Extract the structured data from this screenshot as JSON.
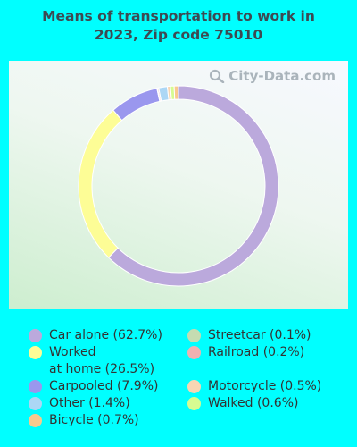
{
  "title_line1": "Means of transportation to work in",
  "title_line2": "2023, Zip code 75010",
  "watermark": "City-Data.com",
  "chart_data": {
    "type": "pie",
    "variant": "donut",
    "title": "Means of transportation to work in 2023, Zip code 75010",
    "slices": [
      {
        "label": "Car alone",
        "value": 62.7,
        "color": "#bba9dc"
      },
      {
        "label": "Worked at home",
        "value": 26.5,
        "color": "#fdfd96"
      },
      {
        "label": "Carpooled",
        "value": 7.9,
        "color": "#9a97ee"
      },
      {
        "label": "Streetcar",
        "value": 0.1,
        "color": "#c5dcb1"
      },
      {
        "label": "Railroad",
        "value": 0.2,
        "color": "#efb1b1"
      },
      {
        "label": "Other",
        "value": 1.4,
        "color": "#acd7f5"
      },
      {
        "label": "Motorcycle",
        "value": 0.5,
        "color": "#f8d6b3"
      },
      {
        "label": "Walked",
        "value": 0.6,
        "color": "#d6fb91"
      },
      {
        "label": "Bicycle",
        "value": 0.7,
        "color": "#f9c98d"
      }
    ],
    "slice_order_clockwise_from_top": [
      "Car alone",
      "Worked at home",
      "Carpooled",
      "Streetcar",
      "Railroad",
      "Other",
      "Motorcycle",
      "Walked",
      "Bicycle"
    ]
  },
  "legend": {
    "col1": [
      {
        "text": "Car alone (62.7%)",
        "color": "#bba9dc"
      },
      {
        "text": "Worked\nat home (26.5%)",
        "color": "#fdfd96"
      },
      {
        "text": "Carpooled (7.9%)",
        "color": "#9a97ee"
      },
      {
        "text": "Other (1.4%)",
        "color": "#acd7f5"
      },
      {
        "text": "Bicycle (0.7%)",
        "color": "#f9c98d"
      }
    ],
    "col2": [
      {
        "text": "Streetcar (0.1%)",
        "color": "#c5dcb1"
      },
      {
        "text": "Railroad (0.2%)",
        "color": "#efb1b1"
      },
      {
        "text": "",
        "color": ""
      },
      {
        "text": "Motorcycle (0.5%)",
        "color": "#f8d6b3"
      },
      {
        "text": "Walked (0.6%)",
        "color": "#d6fb91"
      }
    ]
  }
}
